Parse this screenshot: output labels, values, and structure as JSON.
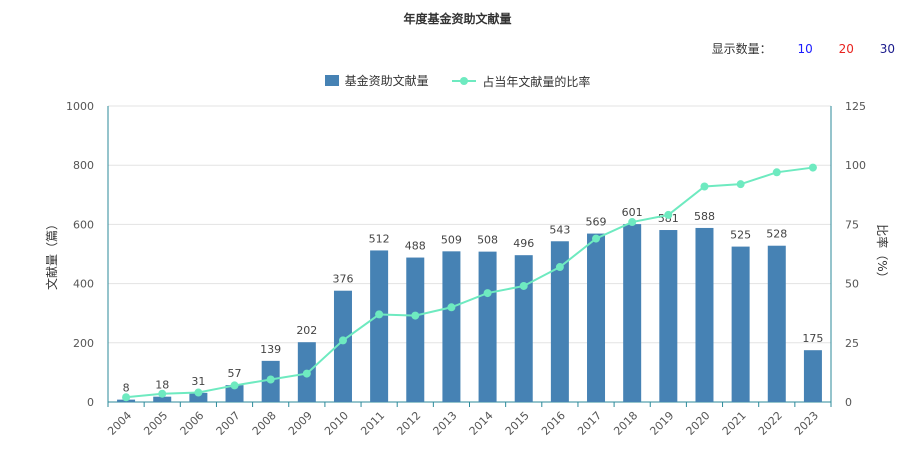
{
  "chart_title": "年度基金资助文献量",
  "count_selector": {
    "label": "显示数量：",
    "options": [
      {
        "text": "10",
        "color": "#1a1aff"
      },
      {
        "text": "20",
        "color": "#e8231f"
      },
      {
        "text": "30",
        "color": "#1a1a8c"
      }
    ]
  },
  "colors": {
    "bar": "#4682B4",
    "line": "#6EEAC0"
  },
  "chart_data": {
    "type": "bar+line",
    "categories": [
      "2004",
      "2005",
      "2006",
      "2007",
      "2008",
      "2009",
      "2010",
      "2011",
      "2012",
      "2013",
      "2014",
      "2015",
      "2016",
      "2017",
      "2018",
      "2019",
      "2020",
      "2021",
      "2022",
      "2023"
    ],
    "series": [
      {
        "name": "基金资助文献量",
        "type": "bar",
        "axis": "left",
        "values": [
          8,
          18,
          31,
          57,
          139,
          202,
          376,
          512,
          488,
          509,
          508,
          496,
          543,
          569,
          601,
          581,
          588,
          525,
          528,
          175
        ]
      },
      {
        "name": "占当年文献量的比率",
        "type": "line",
        "axis": "right",
        "values": [
          2,
          3.5,
          4,
          7,
          9.5,
          12,
          26,
          37,
          36.5,
          40,
          46,
          49,
          57,
          69,
          76,
          79,
          91,
          92,
          97,
          99
        ]
      }
    ],
    "ylabel": "文献量（篇）",
    "y2label": "比率（%）",
    "ylim": [
      0,
      1000
    ],
    "y2lim": [
      0,
      125
    ],
    "yticks": [
      "0",
      "200",
      "400",
      "600",
      "800",
      "1000"
    ],
    "y2ticks": [
      "0",
      "25",
      "50",
      "75",
      "100",
      "125"
    ],
    "grid": true,
    "legend_position": "top-center"
  }
}
